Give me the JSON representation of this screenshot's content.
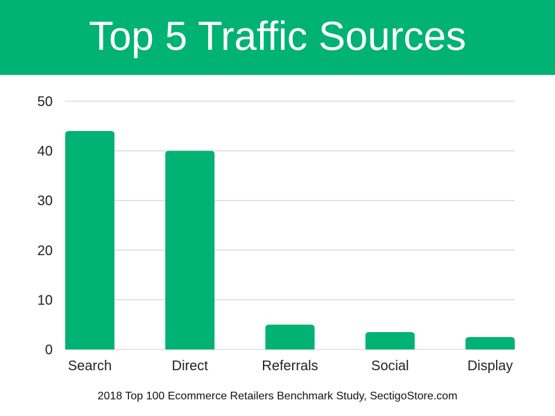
{
  "header": {
    "title": "Top 5 Traffic Sources"
  },
  "source_note": "2018 Top 100 Ecommerce Retailers Benchmark Study, SectigoStore.com",
  "colors": {
    "header_bg": "#00b274",
    "bar": "#00b274",
    "grid": "#cccccc"
  },
  "chart_data": {
    "type": "bar",
    "title": "Top 5 Traffic Sources",
    "xlabel": "",
    "ylabel": "",
    "categories": [
      "Search",
      "Direct",
      "Referrals",
      "Social",
      "Display"
    ],
    "values": [
      44,
      40,
      5,
      3.5,
      2.5
    ],
    "ylim": [
      0,
      50
    ],
    "yticks": [
      0,
      10,
      20,
      30,
      40,
      50
    ],
    "grid": true,
    "legend": "none"
  }
}
